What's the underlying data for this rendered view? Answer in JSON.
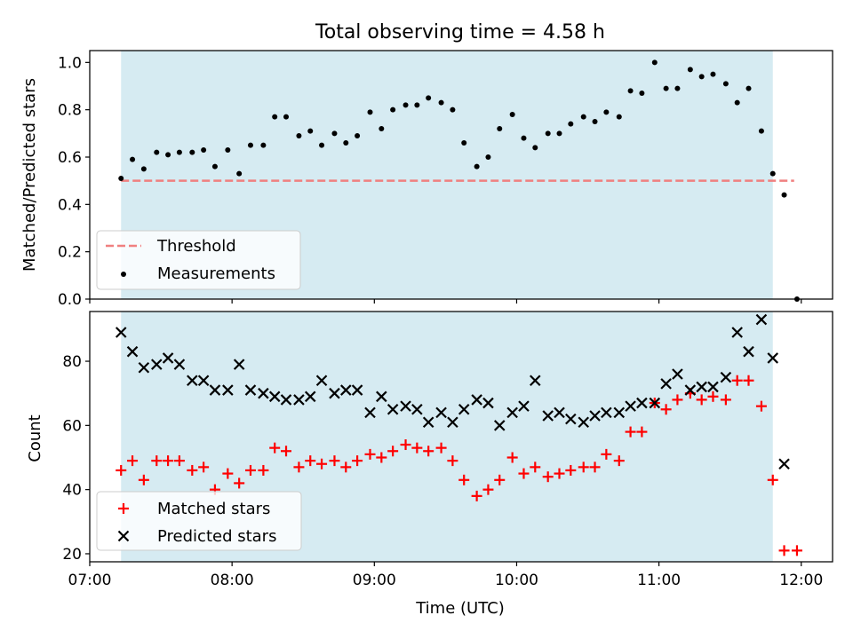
{
  "chart_data": [
    {
      "type": "scatter",
      "title": "Total observing time = 4.58 h",
      "ylabel": "Matched/Predicted stars",
      "xlabel": "",
      "x_unit": "hours UTC",
      "xlim": [
        7.0,
        12.22
      ],
      "ylim": [
        0.0,
        1.05
      ],
      "yticks": [
        0.0,
        0.2,
        0.4,
        0.6,
        0.8,
        1.0
      ],
      "ytick_labels": [
        "0.0",
        "0.2",
        "0.4",
        "0.6",
        "0.8",
        "1.0"
      ],
      "observing_window": [
        7.22,
        11.8
      ],
      "grid": false,
      "legend_position": "lower-left",
      "threshold": {
        "name": "Threshold",
        "value": 0.5,
        "x_range": [
          7.22,
          11.95
        ],
        "color": "#f08080"
      },
      "series": [
        {
          "name": "Measurements",
          "marker": "dot",
          "color": "#000000",
          "x": [
            7.22,
            7.3,
            7.38,
            7.47,
            7.55,
            7.63,
            7.72,
            7.8,
            7.88,
            7.97,
            8.05,
            8.13,
            8.22,
            8.3,
            8.38,
            8.47,
            8.55,
            8.63,
            8.72,
            8.8,
            8.88,
            8.97,
            9.05,
            9.13,
            9.22,
            9.3,
            9.38,
            9.47,
            9.55,
            9.63,
            9.72,
            9.8,
            9.88,
            9.97,
            10.05,
            10.13,
            10.22,
            10.3,
            10.38,
            10.47,
            10.55,
            10.63,
            10.72,
            10.8,
            10.88,
            10.97,
            11.05,
            11.13,
            11.22,
            11.3,
            11.38,
            11.47,
            11.55,
            11.63,
            11.72,
            11.8,
            11.88,
            11.97
          ],
          "y": [
            0.51,
            0.59,
            0.55,
            0.62,
            0.61,
            0.62,
            0.62,
            0.63,
            0.56,
            0.63,
            0.53,
            0.65,
            0.65,
            0.77,
            0.77,
            0.69,
            0.71,
            0.65,
            0.7,
            0.66,
            0.69,
            0.79,
            0.72,
            0.8,
            0.82,
            0.82,
            0.85,
            0.83,
            0.8,
            0.66,
            0.56,
            0.6,
            0.72,
            0.78,
            0.68,
            0.64,
            0.7,
            0.7,
            0.74,
            0.77,
            0.75,
            0.79,
            0.77,
            0.88,
            0.87,
            1.0,
            0.89,
            0.89,
            0.97,
            0.94,
            0.95,
            0.91,
            0.83,
            0.89,
            0.71,
            0.53,
            0.44,
            0.0
          ]
        }
      ],
      "legend": [
        "Threshold",
        "Measurements"
      ]
    },
    {
      "type": "scatter",
      "title": "",
      "ylabel": "Count",
      "xlabel": "Time (UTC)",
      "x_unit": "hours UTC",
      "xlim": [
        7.0,
        12.22
      ],
      "ylim": [
        17.5,
        95.5
      ],
      "yticks": [
        20,
        40,
        60,
        80
      ],
      "ytick_labels": [
        "20",
        "40",
        "60",
        "80"
      ],
      "xticks": [
        7.0,
        8.0,
        9.0,
        10.0,
        11.0,
        12.0
      ],
      "xtick_labels": [
        "07:00",
        "08:00",
        "09:00",
        "10:00",
        "11:00",
        "12:00"
      ],
      "observing_window": [
        7.22,
        11.8
      ],
      "grid": false,
      "legend_position": "lower-left",
      "series": [
        {
          "name": "Matched stars",
          "marker": "plus",
          "color": "#ff0000",
          "x": [
            7.22,
            7.3,
            7.38,
            7.47,
            7.55,
            7.63,
            7.72,
            7.8,
            7.88,
            7.97,
            8.05,
            8.13,
            8.22,
            8.3,
            8.38,
            8.47,
            8.55,
            8.63,
            8.72,
            8.8,
            8.88,
            8.97,
            9.05,
            9.13,
            9.22,
            9.3,
            9.38,
            9.47,
            9.55,
            9.63,
            9.72,
            9.8,
            9.88,
            9.97,
            10.05,
            10.13,
            10.22,
            10.3,
            10.38,
            10.47,
            10.55,
            10.63,
            10.72,
            10.8,
            10.88,
            10.97,
            11.05,
            11.13,
            11.22,
            11.3,
            11.38,
            11.47,
            11.55,
            11.63,
            11.72,
            11.8,
            11.88,
            11.97
          ],
          "y": [
            46,
            49,
            43,
            49,
            49,
            49,
            46,
            47,
            40,
            45,
            42,
            46,
            46,
            53,
            52,
            47,
            49,
            48,
            49,
            47,
            49,
            51,
            50,
            52,
            54,
            53,
            52,
            53,
            49,
            43,
            38,
            40,
            43,
            50,
            45,
            47,
            44,
            45,
            46,
            47,
            47,
            51,
            49,
            58,
            58,
            67,
            65,
            68,
            70,
            68,
            69,
            68,
            74,
            74,
            66,
            43,
            21,
            21
          ]
        },
        {
          "name": "Predicted stars",
          "marker": "x",
          "color": "#000000",
          "x": [
            7.22,
            7.3,
            7.38,
            7.47,
            7.55,
            7.63,
            7.72,
            7.8,
            7.88,
            7.97,
            8.05,
            8.13,
            8.22,
            8.3,
            8.38,
            8.47,
            8.55,
            8.63,
            8.72,
            8.8,
            8.88,
            8.97,
            9.05,
            9.13,
            9.22,
            9.3,
            9.38,
            9.47,
            9.55,
            9.63,
            9.72,
            9.8,
            9.88,
            9.97,
            10.05,
            10.13,
            10.22,
            10.3,
            10.38,
            10.47,
            10.55,
            10.63,
            10.72,
            10.8,
            10.88,
            10.97,
            11.05,
            11.13,
            11.22,
            11.3,
            11.38,
            11.47,
            11.55,
            11.63,
            11.72,
            11.8,
            11.88
          ],
          "y": [
            89,
            83,
            78,
            79,
            81,
            79,
            74,
            74,
            71,
            71,
            79,
            71,
            70,
            69,
            68,
            68,
            69,
            74,
            70,
            71,
            71,
            64,
            69,
            65,
            66,
            65,
            61,
            64,
            61,
            65,
            68,
            67,
            60,
            64,
            66,
            74,
            63,
            64,
            62,
            61,
            63,
            64,
            64,
            66,
            67,
            67,
            73,
            76,
            71,
            72,
            72,
            75,
            89,
            83,
            93,
            81,
            48
          ]
        }
      ],
      "legend": [
        "Matched stars",
        "Predicted stars"
      ]
    }
  ]
}
